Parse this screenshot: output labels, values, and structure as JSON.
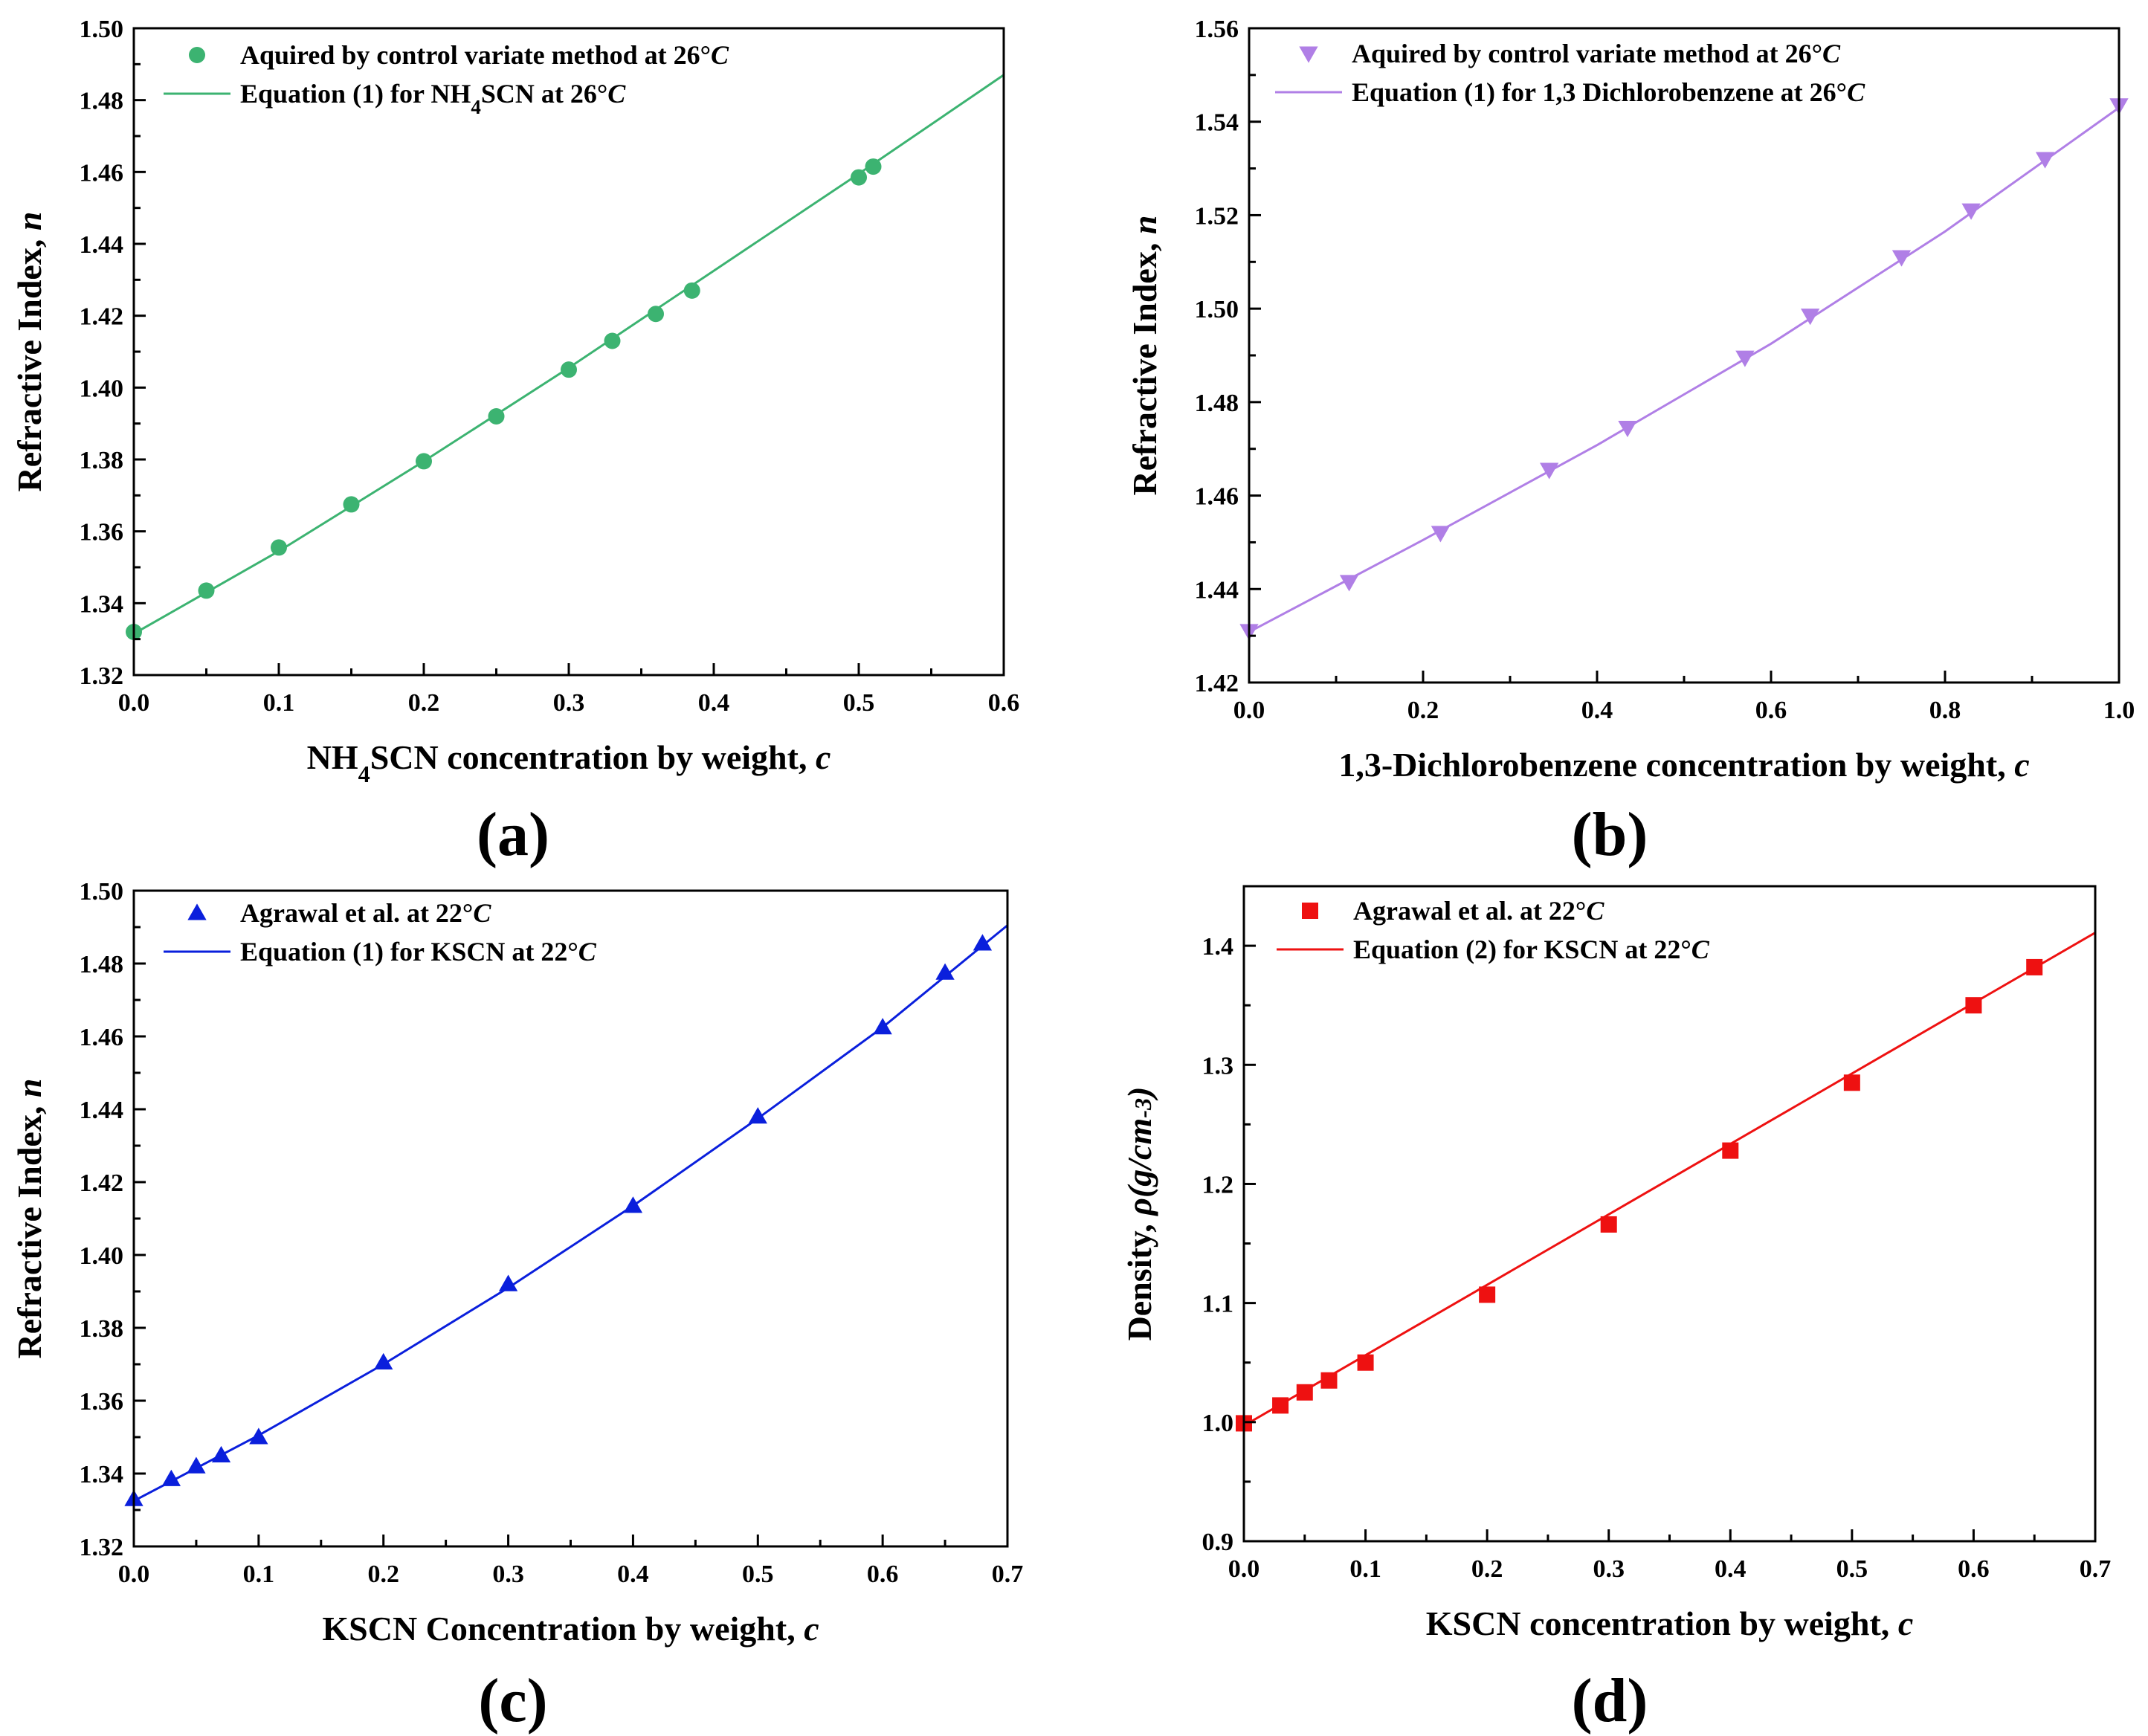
{
  "chart_data": [
    {
      "panel": "(a)",
      "type": "scatter",
      "title": "",
      "xlabel": "NH₄SCN concentration by weight, c",
      "ylabel": "Refractive Index, n",
      "xlim": [
        0,
        0.6
      ],
      "ylim": [
        1.32,
        1.5
      ],
      "xticks": [
        0.0,
        0.1,
        0.2,
        0.3,
        0.4,
        0.5,
        0.6
      ],
      "yticks": [
        1.32,
        1.34,
        1.36,
        1.38,
        1.4,
        1.42,
        1.44,
        1.46,
        1.48,
        1.5
      ],
      "xdecimals": 1,
      "ydecimals": 2,
      "color": "#3cb371",
      "marker": "circle",
      "legend": [
        "Aquired by control variate method at 26°C",
        "Equation (1) for NH₄SCN at 26°C"
      ],
      "points": {
        "x": [
          0.0,
          0.05,
          0.1,
          0.15,
          0.2,
          0.25,
          0.3,
          0.33,
          0.36,
          0.385,
          0.5,
          0.51
        ],
        "y": [
          1.332,
          1.3435,
          1.3555,
          1.3675,
          1.3795,
          1.392,
          1.405,
          1.413,
          1.4205,
          1.427,
          1.4585,
          1.4615
        ]
      },
      "fit": {
        "x": [
          0.0,
          0.1,
          0.2,
          0.3,
          0.4,
          0.5,
          0.6
        ],
        "y": [
          1.3315,
          1.3545,
          1.3795,
          1.4055,
          1.4325,
          1.4595,
          1.487
        ]
      }
    },
    {
      "panel": "(b)",
      "type": "scatter",
      "title": "",
      "xlabel": "1,3-Dichlorobenzene concentration by weight, c",
      "ylabel": "Refractive Index, n",
      "xlim": [
        0,
        1.0
      ],
      "ylim": [
        1.42,
        1.56
      ],
      "xticks": [
        0.0,
        0.2,
        0.4,
        0.6,
        0.8,
        1.0
      ],
      "yticks": [
        1.42,
        1.44,
        1.46,
        1.48,
        1.5,
        1.52,
        1.54,
        1.56
      ],
      "xdecimals": 1,
      "ydecimals": 2,
      "color": "#b07fe6",
      "marker": "triangle-down",
      "legend": [
        "Aquired by control variate method at 26°C",
        "Equation (1) for 1,3 Dichlorobenzene at 26°C"
      ],
      "points": {
        "x": [
          0.0,
          0.115,
          0.22,
          0.345,
          0.435,
          0.57,
          0.645,
          0.75,
          0.83,
          0.915,
          1.0
        ],
        "y": [
          1.431,
          1.4415,
          1.452,
          1.4655,
          1.4745,
          1.4895,
          1.4985,
          1.511,
          1.521,
          1.532,
          1.5435
        ]
      },
      "fit": {
        "x": [
          0.0,
          0.2,
          0.4,
          0.6,
          0.8,
          1.0
        ],
        "y": [
          1.4308,
          1.4505,
          1.4708,
          1.4925,
          1.5165,
          1.543
        ]
      }
    },
    {
      "panel": "(c)",
      "type": "scatter",
      "title": "",
      "xlabel": "KSCN Concentration by weight, c",
      "ylabel": "Refractive Index, n",
      "xlim": [
        0,
        0.7
      ],
      "ylim": [
        1.32,
        1.5
      ],
      "xticks": [
        0.0,
        0.1,
        0.2,
        0.3,
        0.4,
        0.5,
        0.6,
        0.7
      ],
      "yticks": [
        1.32,
        1.34,
        1.36,
        1.38,
        1.4,
        1.42,
        1.44,
        1.46,
        1.48,
        1.5
      ],
      "xdecimals": 1,
      "ydecimals": 2,
      "color": "#0a1fdc",
      "marker": "triangle-up",
      "legend": [
        "Agrawal et al. at 22°C",
        "Equation (1) for KSCN at 22°C"
      ],
      "points": {
        "x": [
          0.0,
          0.03,
          0.05,
          0.07,
          0.1,
          0.2,
          0.3,
          0.4,
          0.5,
          0.6,
          0.65,
          0.68
        ],
        "y": [
          1.333,
          1.3385,
          1.342,
          1.345,
          1.35,
          1.3705,
          1.392,
          1.4135,
          1.438,
          1.4625,
          1.4775,
          1.4855
        ]
      },
      "fit": {
        "x": [
          0.0,
          0.1,
          0.2,
          0.3,
          0.4,
          0.5,
          0.6,
          0.7
        ],
        "y": [
          1.3325,
          1.3505,
          1.37,
          1.391,
          1.4135,
          1.4375,
          1.4625,
          1.4905
        ]
      }
    },
    {
      "panel": "(d)",
      "type": "scatter",
      "title": "",
      "xlabel": "KSCN concentration by weight, c",
      "ylabel": "Density, ρ(g/cm⁻³)",
      "xlim": [
        0,
        0.7
      ],
      "ylim": [
        0.9,
        1.45
      ],
      "xticks": [
        0.0,
        0.1,
        0.2,
        0.3,
        0.4,
        0.5,
        0.6,
        0.7
      ],
      "yticks": [
        0.9,
        1.0,
        1.1,
        1.2,
        1.3,
        1.4
      ],
      "xdecimals": 1,
      "ydecimals": 1,
      "color": "#ee1111",
      "marker": "square",
      "legend": [
        "Agrawal et al. at 22°C",
        "Equation (2) for KSCN at 22°C"
      ],
      "points": {
        "x": [
          0.0,
          0.03,
          0.05,
          0.07,
          0.1,
          0.2,
          0.3,
          0.4,
          0.5,
          0.6,
          0.65
        ],
        "y": [
          0.999,
          1.014,
          1.025,
          1.035,
          1.05,
          1.107,
          1.166,
          1.228,
          1.285,
          1.35,
          1.382
        ]
      },
      "fit": {
        "x": [
          0.0,
          0.7
        ],
        "y": [
          0.997,
          1.411
        ]
      }
    }
  ]
}
